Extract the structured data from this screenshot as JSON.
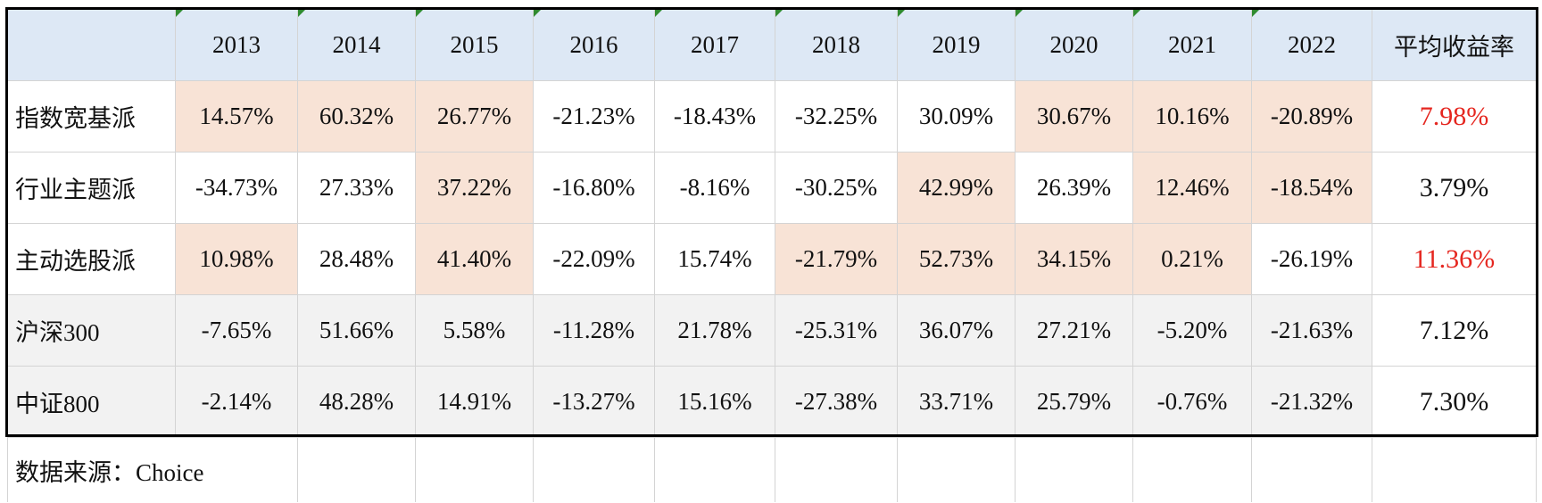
{
  "header": {
    "years": [
      "2013",
      "2014",
      "2015",
      "2016",
      "2017",
      "2018",
      "2019",
      "2020",
      "2021",
      "2022"
    ],
    "average": "平均收益率"
  },
  "rows": [
    {
      "label": "指数宽基派",
      "values": [
        "14.57%",
        "60.32%",
        "26.77%",
        "-21.23%",
        "-18.43%",
        "-32.25%",
        "30.09%",
        "30.67%",
        "10.16%",
        "-20.89%"
      ],
      "average": "7.98%"
    },
    {
      "label": "行业主题派",
      "values": [
        "-34.73%",
        "27.33%",
        "37.22%",
        "-16.80%",
        "-8.16%",
        "-30.25%",
        "42.99%",
        "26.39%",
        "12.46%",
        "-18.54%"
      ],
      "average": "3.79%"
    },
    {
      "label": "主动选股派",
      "values": [
        "10.98%",
        "28.48%",
        "41.40%",
        "-22.09%",
        "15.74%",
        "-21.79%",
        "52.73%",
        "34.15%",
        "0.21%",
        "-26.19%"
      ],
      "average": "11.36%"
    },
    {
      "label": "沪深300",
      "values": [
        "-7.65%",
        "51.66%",
        "5.58%",
        "-11.28%",
        "21.78%",
        "-25.31%",
        "36.07%",
        "27.21%",
        "-5.20%",
        "-21.63%"
      ],
      "average": "7.12%"
    },
    {
      "label": "中证800",
      "values": [
        "-2.14%",
        "48.28%",
        "14.91%",
        "-13.27%",
        "15.16%",
        "-27.38%",
        "33.71%",
        "25.79%",
        "-0.76%",
        "-21.32%"
      ],
      "average": "7.30%"
    }
  ],
  "source": "数据来源：Choice"
}
